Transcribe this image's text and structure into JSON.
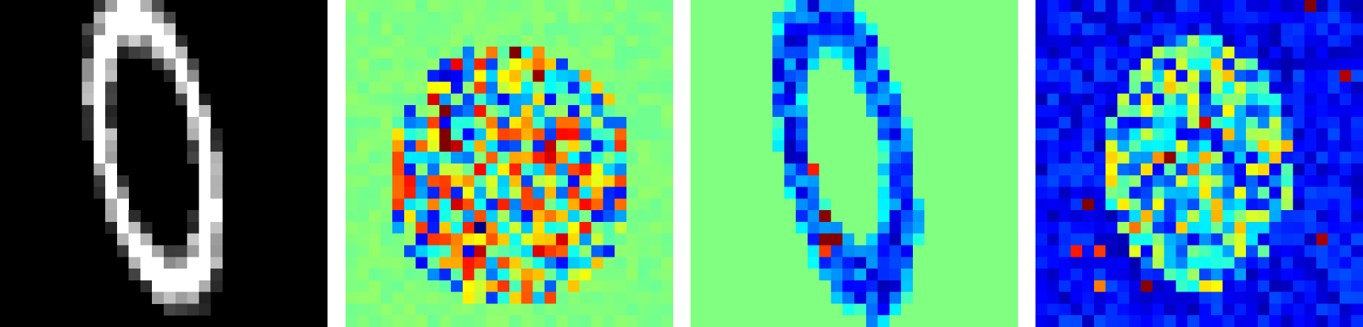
{
  "panels": [
    {
      "name": "input-digit",
      "colormap": "gray",
      "description_colors": {
        "background": "#000000",
        "stroke": "#ffffff"
      }
    },
    {
      "name": "attribution-map-a",
      "colormap": "jet",
      "background": "#86ff7a"
    },
    {
      "name": "attribution-map-b",
      "colormap": "jet",
      "background": "#86ff7a"
    },
    {
      "name": "attribution-map-c",
      "colormap": "jet",
      "background": "#00009f"
    }
  ]
}
